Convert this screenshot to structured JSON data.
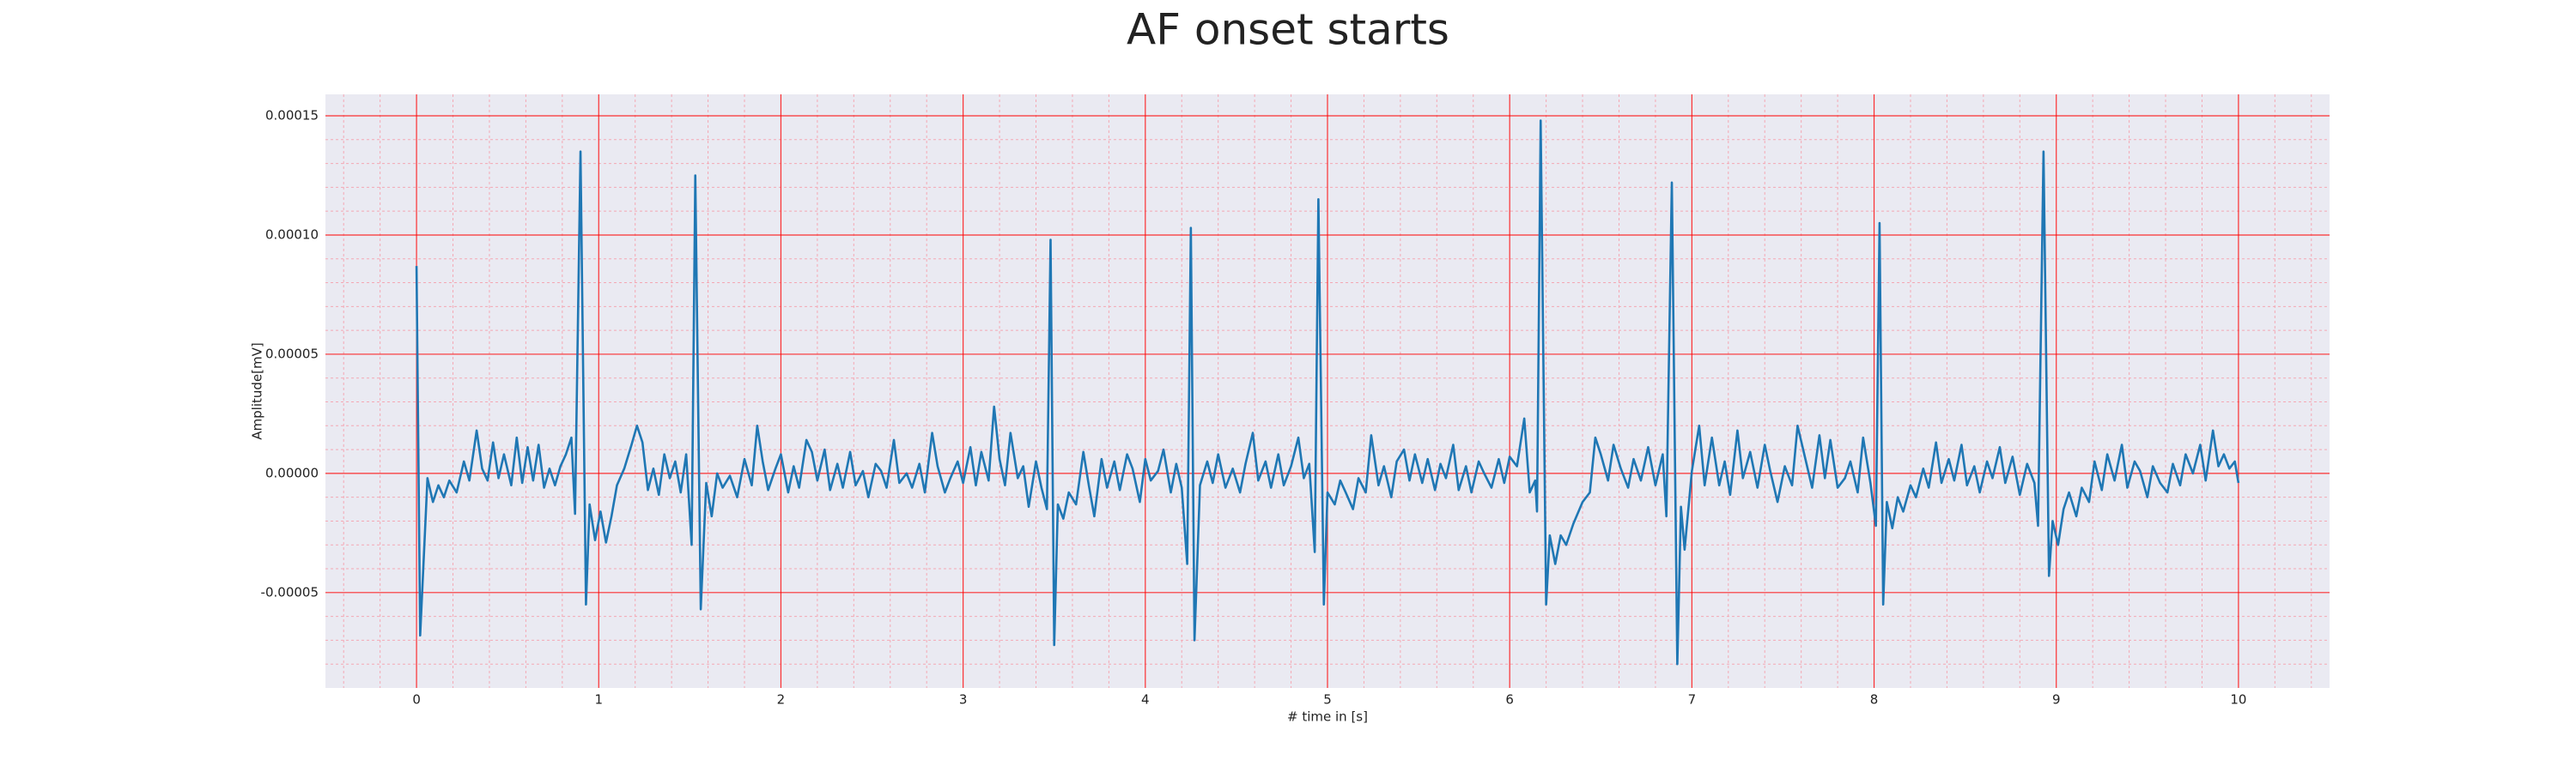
{
  "chart_data": {
    "type": "line",
    "title": "AF onset starts",
    "xlabel": "# time in [s]",
    "ylabel": "Amplitude[mV]",
    "color": "#1f77b4",
    "background": "#eaeaf2",
    "grid": true,
    "grid_color": "#ff0000",
    "minor_grid": true,
    "minor_grid_color": "#f4a8b4",
    "minor_per_major": 5,
    "xlim": [
      -0.5,
      10.5
    ],
    "xticks": [
      0,
      1,
      2,
      3,
      4,
      5,
      6,
      7,
      8,
      9,
      10
    ],
    "ylim": [
      -9e-05,
      0.000159
    ],
    "yticks": [
      -5e-05,
      {
        "value": 0,
        "label": "0.00000"
      },
      5e-05,
      {
        "value": 0.0001,
        "label": "0.00010"
      },
      0.00015
    ],
    "x": [
      0,
      0.02,
      0.06,
      0.09,
      0.12,
      0.15,
      0.18,
      0.22,
      0.26,
      0.29,
      0.33,
      0.36,
      0.39,
      0.42,
      0.45,
      0.48,
      0.52,
      0.55,
      0.58,
      0.61,
      0.64,
      0.67,
      0.7,
      0.73,
      0.76,
      0.79,
      0.82,
      0.85,
      0.87,
      0.9,
      0.93,
      0.95,
      0.98,
      1.01,
      1.04,
      1.07,
      1.1,
      1.14,
      1.18,
      1.21,
      1.24,
      1.27,
      1.3,
      1.33,
      1.36,
      1.39,
      1.42,
      1.45,
      1.48,
      1.51,
      1.53,
      1.56,
      1.59,
      1.62,
      1.65,
      1.68,
      1.72,
      1.76,
      1.8,
      1.84,
      1.87,
      1.9,
      1.93,
      1.97,
      2.0,
      2.04,
      2.07,
      2.1,
      2.14,
      2.17,
      2.2,
      2.24,
      2.27,
      2.31,
      2.34,
      2.38,
      2.41,
      2.45,
      2.48,
      2.52,
      2.55,
      2.58,
      2.62,
      2.65,
      2.69,
      2.72,
      2.76,
      2.79,
      2.83,
      2.86,
      2.9,
      2.93,
      2.97,
      3.0,
      3.04,
      3.07,
      3.1,
      3.14,
      3.17,
      3.2,
      3.23,
      3.26,
      3.3,
      3.33,
      3.36,
      3.4,
      3.43,
      3.46,
      3.48,
      3.5,
      3.52,
      3.55,
      3.58,
      3.62,
      3.66,
      3.69,
      3.72,
      3.76,
      3.79,
      3.83,
      3.86,
      3.9,
      3.93,
      3.97,
      4.0,
      4.03,
      4.07,
      4.1,
      4.14,
      4.17,
      4.2,
      4.23,
      4.25,
      4.27,
      4.3,
      4.34,
      4.37,
      4.4,
      4.44,
      4.48,
      4.52,
      4.55,
      4.59,
      4.62,
      4.66,
      4.69,
      4.73,
      4.76,
      4.8,
      4.84,
      4.87,
      4.9,
      4.93,
      4.95,
      4.98,
      5.0,
      5.04,
      5.07,
      5.1,
      5.14,
      5.17,
      5.21,
      5.24,
      5.28,
      5.31,
      5.35,
      5.38,
      5.42,
      5.45,
      5.48,
      5.52,
      5.55,
      5.59,
      5.62,
      5.65,
      5.69,
      5.72,
      5.76,
      5.79,
      5.83,
      5.86,
      5.9,
      5.94,
      5.97,
      6.0,
      6.04,
      6.08,
      6.11,
      6.14,
      6.15,
      6.17,
      6.2,
      6.22,
      6.25,
      6.28,
      6.31,
      6.35,
      6.4,
      6.44,
      6.47,
      6.5,
      6.54,
      6.57,
      6.61,
      6.65,
      6.68,
      6.72,
      6.76,
      6.8,
      6.84,
      6.86,
      6.89,
      6.92,
      6.94,
      6.96,
      7.0,
      7.04,
      7.07,
      7.11,
      7.15,
      7.18,
      7.21,
      7.25,
      7.28,
      7.32,
      7.36,
      7.4,
      7.43,
      7.47,
      7.51,
      7.55,
      7.58,
      7.62,
      7.66,
      7.7,
      7.73,
      7.76,
      7.8,
      7.84,
      7.87,
      7.91,
      7.94,
      7.98,
      8.01,
      8.03,
      8.05,
      8.07,
      8.1,
      8.13,
      8.16,
      8.2,
      8.23,
      8.27,
      8.3,
      8.34,
      8.37,
      8.41,
      8.44,
      8.48,
      8.51,
      8.55,
      8.58,
      8.62,
      8.65,
      8.69,
      8.72,
      8.76,
      8.8,
      8.84,
      8.88,
      8.9,
      8.93,
      8.96,
      8.98,
      9.01,
      9.04,
      9.07,
      9.11,
      9.14,
      9.18,
      9.21,
      9.25,
      9.28,
      9.32,
      9.36,
      9.39,
      9.43,
      9.46,
      9.5,
      9.53,
      9.57,
      9.61,
      9.64,
      9.68,
      9.71,
      9.75,
      9.79,
      9.82,
      9.86,
      9.89,
      9.92,
      9.95,
      9.98,
      10.0
    ],
    "values": [
      8.7e-05,
      -6.8e-05,
      -2e-06,
      -1.2e-05,
      -5e-06,
      -1e-05,
      -3e-06,
      -8e-06,
      5e-06,
      -3e-06,
      1.8e-05,
      2e-06,
      -3e-06,
      1.3e-05,
      -2e-06,
      8e-06,
      -5e-06,
      1.5e-05,
      -4e-06,
      1.1e-05,
      -3e-06,
      1.2e-05,
      -6e-06,
      2e-06,
      -5e-06,
      3e-06,
      8e-06,
      1.5e-05,
      -1.7e-05,
      0.000135,
      -5.5e-05,
      -1.3e-05,
      -2.8e-05,
      -1.6e-05,
      -2.9e-05,
      -1.8e-05,
      -5e-06,
      2e-06,
      1.2e-05,
      2e-05,
      1.3e-05,
      -7e-06,
      2e-06,
      -9e-06,
      8e-06,
      -2e-06,
      5e-06,
      -8e-06,
      8e-06,
      -3e-05,
      0.000125,
      -5.7e-05,
      -4e-06,
      -1.8e-05,
      0,
      -6e-06,
      -1e-06,
      -1e-05,
      6e-06,
      -5e-06,
      2e-05,
      5e-06,
      -7e-06,
      2e-06,
      8e-06,
      -8e-06,
      3e-06,
      -6e-06,
      1.4e-05,
      9e-06,
      -3e-06,
      1e-05,
      -7e-06,
      4e-06,
      -6e-06,
      9e-06,
      -5e-06,
      1e-06,
      -1e-05,
      4e-06,
      1e-06,
      -6e-06,
      1.4e-05,
      -4e-06,
      0,
      -6e-06,
      4e-06,
      -8e-06,
      1.7e-05,
      3e-06,
      -8e-06,
      -2e-06,
      5e-06,
      -4e-06,
      1.1e-05,
      -5e-06,
      9e-06,
      -3e-06,
      2.8e-05,
      6e-06,
      -5e-06,
      1.7e-05,
      -2e-06,
      3e-06,
      -1.4e-05,
      5e-06,
      -6e-06,
      -1.5e-05,
      9.8e-05,
      -7.2e-05,
      -1.3e-05,
      -1.9e-05,
      -8e-06,
      -1.3e-05,
      9e-06,
      -5e-06,
      -1.8e-05,
      6e-06,
      -6e-06,
      5e-06,
      -7e-06,
      8e-06,
      2e-06,
      -1.2e-05,
      6e-06,
      -3e-06,
      1e-06,
      1e-05,
      -8e-06,
      4e-06,
      -6e-06,
      -3.8e-05,
      0.000103,
      -7e-05,
      -5e-06,
      5e-06,
      -4e-06,
      8e-06,
      -6e-06,
      2e-06,
      -8e-06,
      4e-06,
      1.7e-05,
      -3e-06,
      5e-06,
      -6e-06,
      8e-06,
      -5e-06,
      3e-06,
      1.5e-05,
      -2e-06,
      4e-06,
      -3.3e-05,
      0.000115,
      -5.5e-05,
      -8e-06,
      -1.3e-05,
      -3e-06,
      -8e-06,
      -1.5e-05,
      -2e-06,
      -8e-06,
      1.6e-05,
      -5e-06,
      3e-06,
      -1e-05,
      5e-06,
      1e-05,
      -3e-06,
      8e-06,
      -4e-06,
      6e-06,
      -7e-06,
      4e-06,
      -2e-06,
      1.2e-05,
      -7e-06,
      3e-06,
      -8e-06,
      5e-06,
      0,
      -6e-06,
      6e-06,
      -4e-06,
      7e-06,
      3e-06,
      2.3e-05,
      -8e-06,
      -3e-06,
      -1.6e-05,
      0.000148,
      -5.5e-05,
      -2.6e-05,
      -3.8e-05,
      -2.6e-05,
      -3e-05,
      -2.1e-05,
      -1.2e-05,
      -8e-06,
      1.5e-05,
      8e-06,
      -3e-06,
      1.2e-05,
      2e-06,
      -6e-06,
      6e-06,
      -3e-06,
      1.1e-05,
      -5e-06,
      8e-06,
      -1.8e-05,
      0.000122,
      -8e-05,
      -1.4e-05,
      -3.2e-05,
      1e-06,
      2e-05,
      -5e-06,
      1.5e-05,
      -5e-06,
      5e-06,
      -9e-06,
      1.8e-05,
      -2e-06,
      9e-06,
      -6e-06,
      1.2e-05,
      1e-06,
      -1.2e-05,
      3e-06,
      -5e-06,
      2e-05,
      7e-06,
      -6e-06,
      1.6e-05,
      -2e-06,
      1.4e-05,
      -6e-06,
      -2e-06,
      5e-06,
      -8e-06,
      1.5e-05,
      -4e-06,
      -2.2e-05,
      0.000105,
      -5.5e-05,
      -1.2e-05,
      -2.3e-05,
      -1e-05,
      -1.6e-05,
      -5e-06,
      -1e-05,
      2e-06,
      -6e-06,
      1.3e-05,
      -4e-06,
      6e-06,
      -3e-06,
      1.2e-05,
      -5e-06,
      3e-06,
      -8e-06,
      5e-06,
      -2e-06,
      1.1e-05,
      -4e-06,
      7e-06,
      -9e-06,
      4e-06,
      -4e-06,
      -2.2e-05,
      0.000135,
      -4.3e-05,
      -2e-05,
      -3e-05,
      -1.5e-05,
      -8e-06,
      -1.8e-05,
      -6e-06,
      -1.2e-05,
      5e-06,
      -7e-06,
      8e-06,
      -3e-06,
      1.2e-05,
      -6e-06,
      5e-06,
      1e-06,
      -1e-05,
      3e-06,
      -4e-06,
      -8e-06,
      4e-06,
      -5e-06,
      8e-06,
      0,
      1.2e-05,
      -3e-06,
      1.8e-05,
      3e-06,
      8e-06,
      2e-06,
      5e-06,
      -4e-06
    ]
  }
}
